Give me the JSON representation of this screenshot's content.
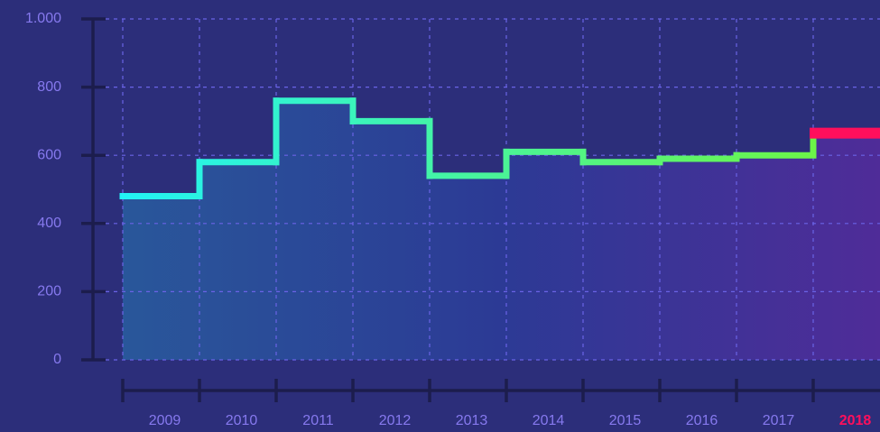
{
  "chart_data": {
    "type": "step",
    "categories": [
      "2009",
      "2010",
      "2011",
      "2012",
      "2013",
      "2014",
      "2015",
      "2016",
      "2017",
      "2018"
    ],
    "values": [
      480,
      580,
      760,
      700,
      540,
      610,
      580,
      590,
      600,
      665
    ],
    "ylim": [
      0,
      1000
    ],
    "yticks": [
      0,
      200,
      400,
      600,
      800,
      {
        "value": 1000,
        "label": "1.000"
      }
    ],
    "grid": true,
    "line_colors": [
      "#22f3f5",
      "#6cf548"
    ],
    "highlight": {
      "index": 9,
      "color": "#ff0f5c"
    }
  }
}
